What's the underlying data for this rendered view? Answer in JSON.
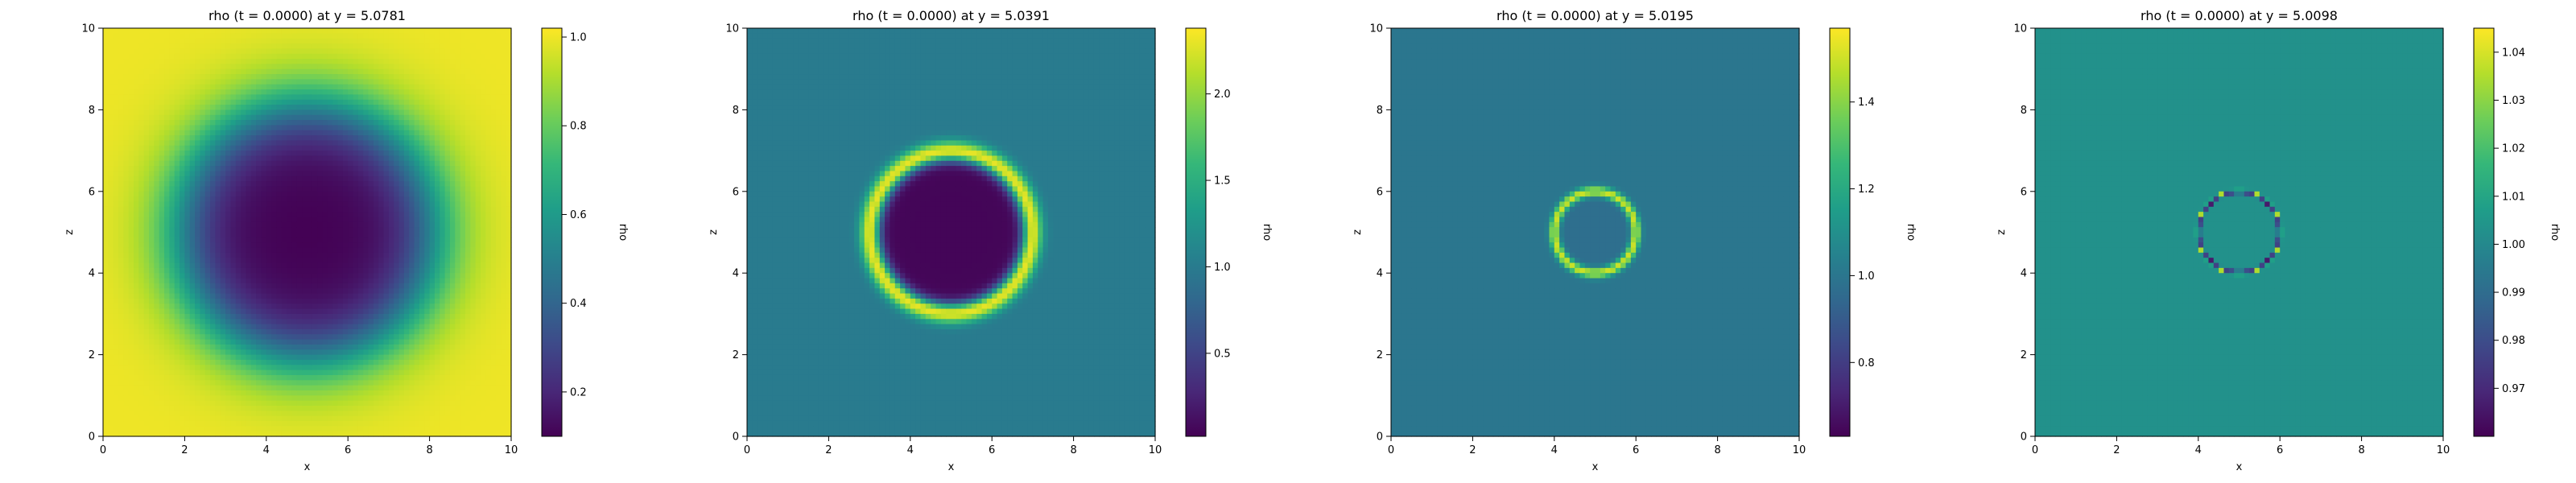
{
  "chart_data": [
    {
      "type": "heatmap",
      "title": "rho (t = 0.0000) at y = 5.0781",
      "xlabel": "x",
      "ylabel": "z",
      "xlim": [
        0,
        10
      ],
      "ylim": [
        0,
        10
      ],
      "x_ticks": [
        "0",
        "2",
        "4",
        "6",
        "8",
        "10"
      ],
      "y_ticks": [
        "0",
        "2",
        "4",
        "6",
        "8",
        "10"
      ],
      "colorbar": {
        "label": "rho",
        "min": 0.1,
        "max": 1.02,
        "ticks": [
          "0.2",
          "0.4",
          "0.6",
          "0.8",
          "1.0"
        ]
      },
      "field": {
        "shape": "smooth_cavity",
        "center": [
          5.0,
          5.0
        ],
        "inner_value": 0.1,
        "outer_value": 1.0,
        "transition_radius": 3.1,
        "width": 1.1
      }
    },
    {
      "type": "heatmap",
      "title": "rho (t = 0.0000) at y = 5.0391",
      "xlabel": "x",
      "ylabel": "z",
      "xlim": [
        0,
        10
      ],
      "ylim": [
        0,
        10
      ],
      "x_ticks": [
        "0",
        "2",
        "4",
        "6",
        "8",
        "10"
      ],
      "y_ticks": [
        "0",
        "2",
        "4",
        "6",
        "8",
        "10"
      ],
      "colorbar": {
        "label": "rho",
        "min": 0.02,
        "max": 2.38,
        "ticks": [
          "0.5",
          "1.0",
          "1.5",
          "2.0"
        ]
      },
      "field": {
        "shape": "shell",
        "center": [
          5.0,
          5.0
        ],
        "background": 1.0,
        "inner_value": 0.05,
        "ring_value": 2.3,
        "ring_radius": 2.0,
        "ring_width": 0.25
      }
    },
    {
      "type": "heatmap",
      "title": "rho (t = 0.0000) at y = 5.0195",
      "xlabel": "x",
      "ylabel": "z",
      "xlim": [
        0,
        10
      ],
      "ylim": [
        0,
        10
      ],
      "x_ticks": [
        "0",
        "2",
        "4",
        "6",
        "8",
        "10"
      ],
      "y_ticks": [
        "0",
        "2",
        "4",
        "6",
        "8",
        "10"
      ],
      "colorbar": {
        "label": "rho",
        "min": 0.63,
        "max": 1.57,
        "ticks": [
          "0.8",
          "1.0",
          "1.2",
          "1.4"
        ]
      },
      "field": {
        "shape": "shell",
        "center": [
          5.0,
          5.0
        ],
        "background": 1.0,
        "inner_value": 0.97,
        "ring_value": 1.5,
        "ring_radius": 1.0,
        "ring_width": 0.12
      }
    },
    {
      "type": "heatmap",
      "title": "rho (t = 0.0000) at y = 5.0098",
      "xlabel": "x",
      "ylabel": "z",
      "xlim": [
        0,
        10
      ],
      "ylim": [
        0,
        10
      ],
      "x_ticks": [
        "0",
        "2",
        "4",
        "6",
        "8",
        "10"
      ],
      "y_ticks": [
        "0",
        "2",
        "4",
        "6",
        "8",
        "10"
      ],
      "colorbar": {
        "label": "rho",
        "min": 0.96,
        "max": 1.045,
        "ticks": [
          "0.97",
          "0.98",
          "0.99",
          "1.00",
          "1.01",
          "1.02",
          "1.03",
          "1.04"
        ]
      },
      "field": {
        "shape": "thin_ring",
        "center": [
          5.0,
          5.0
        ],
        "background": 1.003,
        "ring_radius": 1.0,
        "ring_high": 1.045,
        "ring_low": 0.96
      }
    }
  ],
  "colors": {
    "viridis": [
      "#440154",
      "#482878",
      "#3e4989",
      "#31688e",
      "#26828e",
      "#1f9e89",
      "#35b779",
      "#6ece58",
      "#b5de2b",
      "#fde725"
    ],
    "axis": "#000000",
    "background": "#ffffff"
  }
}
